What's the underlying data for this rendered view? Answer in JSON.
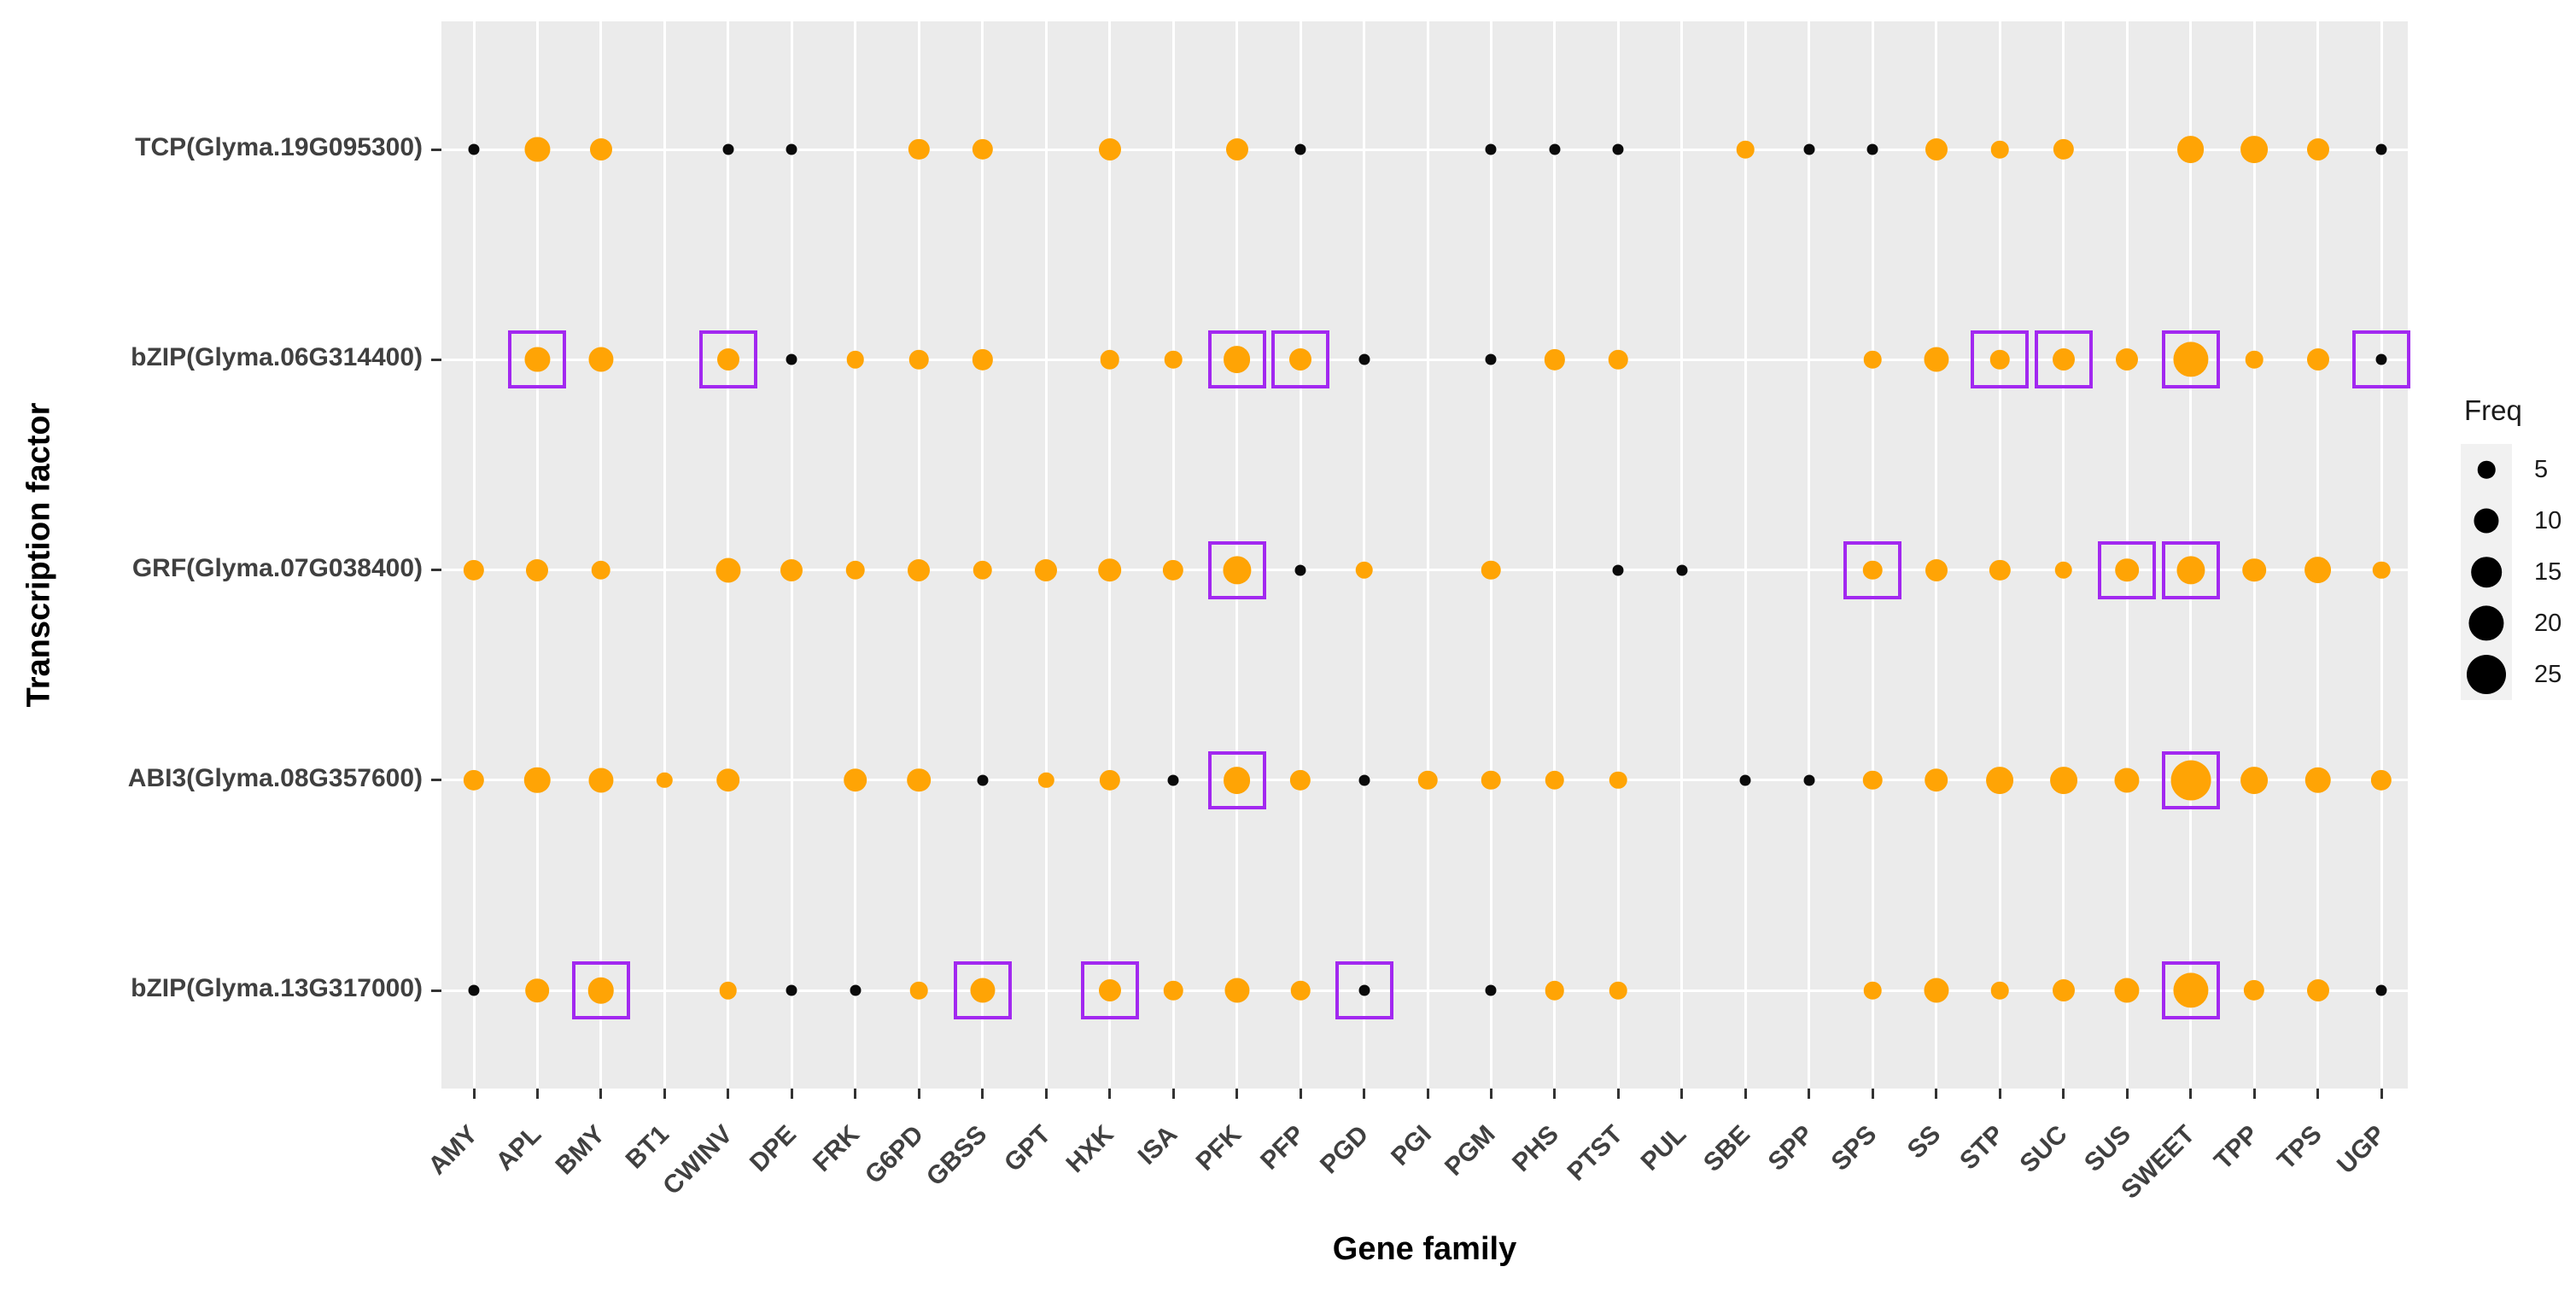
{
  "axes": {
    "x_title": "Gene family",
    "y_title": "Transcription factor"
  },
  "legend": {
    "title": "Freq",
    "entries": [
      5,
      10,
      15,
      20,
      25
    ]
  },
  "colors": {
    "orange": "#FFA405",
    "black": "#0A0A0A",
    "box": "#A228F0",
    "panel_bg": "#EBEBEB",
    "gridline": "#FFFFFF"
  },
  "chart_data": {
    "type": "scatter",
    "title": "",
    "xlabel": "Gene family",
    "ylabel": "Transcription factor",
    "size_legend_title": "Freq",
    "size_legend_values": [
      5,
      10,
      15,
      20,
      25
    ],
    "x_categories": [
      "AMY",
      "APL",
      "BMY",
      "BT1",
      "CWINV",
      "DPE",
      "FRK",
      "G6PD",
      "GBSS",
      "GPT",
      "HXK",
      "ISA",
      "PFK",
      "PFP",
      "PGD",
      "PGI",
      "PGM",
      "PHS",
      "PTST",
      "PUL",
      "SBE",
      "SPP",
      "SPS",
      "SS",
      "STP",
      "SUC",
      "SUS",
      "SWEET",
      "TPP",
      "TPS",
      "UGP"
    ],
    "y_categories": [
      "TCP(Glyma.19G095300)",
      "bZIP(Glyma.06G314400)",
      "GRF(Glyma.07G038400)",
      "ABI3(Glyma.08G357600)",
      "bZIP(Glyma.13G317000)"
    ],
    "series": [
      {
        "tf": "TCP(Glyma.19G095300)",
        "points": [
          {
            "gene": "AMY",
            "freq": 2,
            "color": "black"
          },
          {
            "gene": "APL",
            "freq": 10,
            "color": "orange"
          },
          {
            "gene": "BMY",
            "freq": 8,
            "color": "orange"
          },
          {
            "gene": "CWINV",
            "freq": 2,
            "color": "black"
          },
          {
            "gene": "DPE",
            "freq": 2,
            "color": "black"
          },
          {
            "gene": "G6PD",
            "freq": 7,
            "color": "orange"
          },
          {
            "gene": "GBSS",
            "freq": 7,
            "color": "orange"
          },
          {
            "gene": "HXK",
            "freq": 8,
            "color": "orange"
          },
          {
            "gene": "PFK",
            "freq": 8,
            "color": "orange"
          },
          {
            "gene": "PFP",
            "freq": 2,
            "color": "black"
          },
          {
            "gene": "PGM",
            "freq": 2,
            "color": "black"
          },
          {
            "gene": "PHS",
            "freq": 2,
            "color": "black"
          },
          {
            "gene": "PTST",
            "freq": 2,
            "color": "black"
          },
          {
            "gene": "SBE",
            "freq": 5,
            "color": "orange"
          },
          {
            "gene": "SPP",
            "freq": 2,
            "color": "black"
          },
          {
            "gene": "SPS",
            "freq": 2,
            "color": "black"
          },
          {
            "gene": "SS",
            "freq": 8,
            "color": "orange"
          },
          {
            "gene": "STP",
            "freq": 5,
            "color": "orange"
          },
          {
            "gene": "SUC",
            "freq": 7,
            "color": "orange"
          },
          {
            "gene": "SWEET",
            "freq": 12,
            "color": "orange"
          },
          {
            "gene": "TPP",
            "freq": 12,
            "color": "orange"
          },
          {
            "gene": "TPS",
            "freq": 8,
            "color": "orange"
          },
          {
            "gene": "UGP",
            "freq": 2,
            "color": "black"
          }
        ]
      },
      {
        "tf": "bZIP(Glyma.06G314400)",
        "points": [
          {
            "gene": "APL",
            "freq": 10,
            "color": "orange",
            "boxed": true
          },
          {
            "gene": "BMY",
            "freq": 10,
            "color": "orange"
          },
          {
            "gene": "CWINV",
            "freq": 8,
            "color": "orange",
            "boxed": true
          },
          {
            "gene": "DPE",
            "freq": 2,
            "color": "black"
          },
          {
            "gene": "FRK",
            "freq": 5,
            "color": "orange"
          },
          {
            "gene": "G6PD",
            "freq": 6,
            "color": "orange"
          },
          {
            "gene": "GBSS",
            "freq": 7,
            "color": "orange"
          },
          {
            "gene": "HXK",
            "freq": 6,
            "color": "orange"
          },
          {
            "gene": "ISA",
            "freq": 5,
            "color": "orange"
          },
          {
            "gene": "PFK",
            "freq": 12,
            "color": "orange",
            "boxed": true
          },
          {
            "gene": "PFP",
            "freq": 8,
            "color": "orange",
            "boxed": true
          },
          {
            "gene": "PGD",
            "freq": 2,
            "color": "black"
          },
          {
            "gene": "PGM",
            "freq": 2,
            "color": "black"
          },
          {
            "gene": "PHS",
            "freq": 7,
            "color": "orange"
          },
          {
            "gene": "PTST",
            "freq": 6,
            "color": "orange"
          },
          {
            "gene": "SPS",
            "freq": 5,
            "color": "orange"
          },
          {
            "gene": "SS",
            "freq": 10,
            "color": "orange"
          },
          {
            "gene": "STP",
            "freq": 6,
            "color": "orange",
            "boxed": true
          },
          {
            "gene": "SUC",
            "freq": 8,
            "color": "orange",
            "boxed": true
          },
          {
            "gene": "SUS",
            "freq": 8,
            "color": "orange"
          },
          {
            "gene": "SWEET",
            "freq": 20,
            "color": "orange",
            "boxed": true
          },
          {
            "gene": "TPP",
            "freq": 5,
            "color": "orange"
          },
          {
            "gene": "TPS",
            "freq": 8,
            "color": "orange"
          },
          {
            "gene": "UGP",
            "freq": 2,
            "color": "black",
            "boxed": true
          }
        ]
      },
      {
        "tf": "GRF(Glyma.07G038400)",
        "points": [
          {
            "gene": "AMY",
            "freq": 7,
            "color": "orange"
          },
          {
            "gene": "APL",
            "freq": 8,
            "color": "orange"
          },
          {
            "gene": "BMY",
            "freq": 6,
            "color": "orange"
          },
          {
            "gene": "CWINV",
            "freq": 10,
            "color": "orange"
          },
          {
            "gene": "DPE",
            "freq": 8,
            "color": "orange"
          },
          {
            "gene": "FRK",
            "freq": 6,
            "color": "orange"
          },
          {
            "gene": "G6PD",
            "freq": 8,
            "color": "orange"
          },
          {
            "gene": "GBSS",
            "freq": 6,
            "color": "orange"
          },
          {
            "gene": "GPT",
            "freq": 8,
            "color": "orange"
          },
          {
            "gene": "HXK",
            "freq": 9,
            "color": "orange"
          },
          {
            "gene": "ISA",
            "freq": 7,
            "color": "orange"
          },
          {
            "gene": "PFK",
            "freq": 13,
            "color": "orange",
            "boxed": true
          },
          {
            "gene": "PFP",
            "freq": 2,
            "color": "black"
          },
          {
            "gene": "PGD",
            "freq": 5,
            "color": "orange"
          },
          {
            "gene": "PGM",
            "freq": 6,
            "color": "orange"
          },
          {
            "gene": "PTST",
            "freq": 2,
            "color": "black"
          },
          {
            "gene": "PUL",
            "freq": 2,
            "color": "black"
          },
          {
            "gene": "SPS",
            "freq": 6,
            "color": "orange",
            "boxed": true
          },
          {
            "gene": "SS",
            "freq": 8,
            "color": "orange"
          },
          {
            "gene": "STP",
            "freq": 7,
            "color": "orange"
          },
          {
            "gene": "SUC",
            "freq": 5,
            "color": "orange"
          },
          {
            "gene": "SUS",
            "freq": 9,
            "color": "orange",
            "boxed": true
          },
          {
            "gene": "SWEET",
            "freq": 13,
            "color": "orange",
            "boxed": true
          },
          {
            "gene": "TPP",
            "freq": 9,
            "color": "orange"
          },
          {
            "gene": "TPS",
            "freq": 12,
            "color": "orange"
          },
          {
            "gene": "UGP",
            "freq": 5,
            "color": "orange"
          }
        ]
      },
      {
        "tf": "ABI3(Glyma.08G357600)",
        "points": [
          {
            "gene": "AMY",
            "freq": 7,
            "color": "orange"
          },
          {
            "gene": "APL",
            "freq": 11,
            "color": "orange"
          },
          {
            "gene": "BMY",
            "freq": 10,
            "color": "orange"
          },
          {
            "gene": "BT1",
            "freq": 4,
            "color": "orange"
          },
          {
            "gene": "CWINV",
            "freq": 9,
            "color": "orange"
          },
          {
            "gene": "FRK",
            "freq": 9,
            "color": "orange"
          },
          {
            "gene": "G6PD",
            "freq": 9,
            "color": "orange"
          },
          {
            "gene": "GBSS",
            "freq": 2,
            "color": "black"
          },
          {
            "gene": "GPT",
            "freq": 4,
            "color": "orange"
          },
          {
            "gene": "HXK",
            "freq": 7,
            "color": "orange"
          },
          {
            "gene": "ISA",
            "freq": 2,
            "color": "black"
          },
          {
            "gene": "PFK",
            "freq": 12,
            "color": "orange",
            "boxed": true
          },
          {
            "gene": "PFP",
            "freq": 7,
            "color": "orange"
          },
          {
            "gene": "PGD",
            "freq": 2,
            "color": "black"
          },
          {
            "gene": "PGI",
            "freq": 6,
            "color": "orange"
          },
          {
            "gene": "PGM",
            "freq": 6,
            "color": "orange"
          },
          {
            "gene": "PHS",
            "freq": 6,
            "color": "orange"
          },
          {
            "gene": "PTST",
            "freq": 5,
            "color": "orange"
          },
          {
            "gene": "SBE",
            "freq": 2,
            "color": "black"
          },
          {
            "gene": "SPP",
            "freq": 2,
            "color": "black"
          },
          {
            "gene": "SPS",
            "freq": 6,
            "color": "orange"
          },
          {
            "gene": "SS",
            "freq": 9,
            "color": "orange"
          },
          {
            "gene": "STP",
            "freq": 12,
            "color": "orange"
          },
          {
            "gene": "SUC",
            "freq": 12,
            "color": "orange"
          },
          {
            "gene": "SUS",
            "freq": 10,
            "color": "orange"
          },
          {
            "gene": "SWEET",
            "freq": 26,
            "color": "orange",
            "boxed": true
          },
          {
            "gene": "TPP",
            "freq": 12,
            "color": "orange"
          },
          {
            "gene": "TPS",
            "freq": 11,
            "color": "orange"
          },
          {
            "gene": "UGP",
            "freq": 7,
            "color": "orange"
          }
        ]
      },
      {
        "tf": "bZIP(Glyma.13G317000)",
        "points": [
          {
            "gene": "AMY",
            "freq": 2,
            "color": "black"
          },
          {
            "gene": "APL",
            "freq": 9,
            "color": "orange"
          },
          {
            "gene": "BMY",
            "freq": 11,
            "color": "orange",
            "boxed": true
          },
          {
            "gene": "CWINV",
            "freq": 5,
            "color": "orange"
          },
          {
            "gene": "DPE",
            "freq": 2,
            "color": "black"
          },
          {
            "gene": "FRK",
            "freq": 2,
            "color": "black"
          },
          {
            "gene": "G6PD",
            "freq": 5,
            "color": "orange"
          },
          {
            "gene": "GBSS",
            "freq": 10,
            "color": "orange",
            "boxed": true
          },
          {
            "gene": "HXK",
            "freq": 8,
            "color": "orange",
            "boxed": true
          },
          {
            "gene": "ISA",
            "freq": 6,
            "color": "orange"
          },
          {
            "gene": "PFK",
            "freq": 10,
            "color": "orange"
          },
          {
            "gene": "PFP",
            "freq": 6,
            "color": "orange"
          },
          {
            "gene": "PGD",
            "freq": 2,
            "color": "black",
            "boxed": true
          },
          {
            "gene": "PGM",
            "freq": 2,
            "color": "black"
          },
          {
            "gene": "PHS",
            "freq": 6,
            "color": "orange"
          },
          {
            "gene": "PTST",
            "freq": 5,
            "color": "orange"
          },
          {
            "gene": "SPS",
            "freq": 5,
            "color": "orange"
          },
          {
            "gene": "SS",
            "freq": 10,
            "color": "orange"
          },
          {
            "gene": "STP",
            "freq": 5,
            "color": "orange"
          },
          {
            "gene": "SUC",
            "freq": 8,
            "color": "orange"
          },
          {
            "gene": "SUS",
            "freq": 10,
            "color": "orange"
          },
          {
            "gene": "SWEET",
            "freq": 20,
            "color": "orange",
            "boxed": true
          },
          {
            "gene": "TPP",
            "freq": 7,
            "color": "orange"
          },
          {
            "gene": "TPS",
            "freq": 8,
            "color": "orange"
          },
          {
            "gene": "UGP",
            "freq": 2,
            "color": "black"
          }
        ]
      }
    ]
  }
}
